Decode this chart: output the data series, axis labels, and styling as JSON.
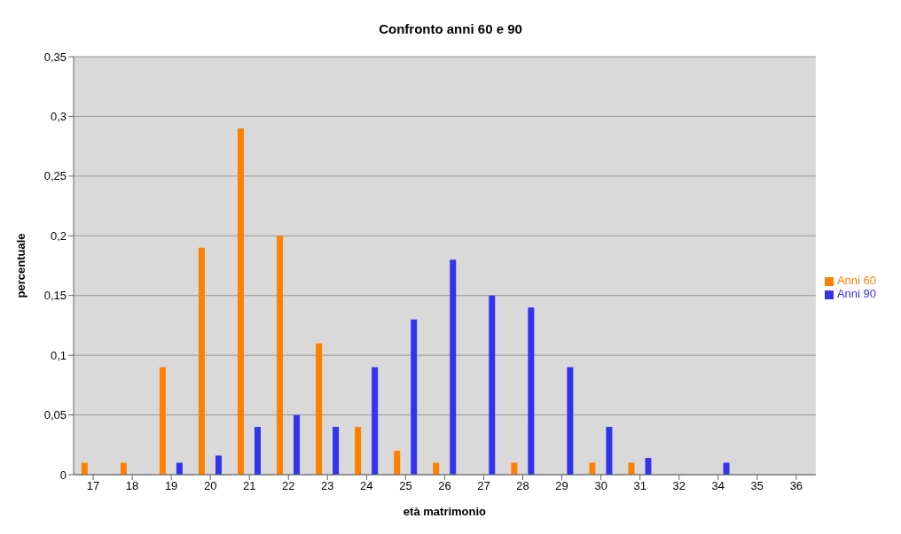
{
  "chart_data": {
    "type": "bar",
    "title": "Confronto anni 60 e 90",
    "xlabel": "età matrimonio",
    "ylabel": "percentuale",
    "categories": [
      "17",
      "18",
      "19",
      "20",
      "21",
      "22",
      "23",
      "24",
      "25",
      "26",
      "27",
      "28",
      "29",
      "30",
      "31",
      "32",
      "34",
      "35",
      "36"
    ],
    "series": [
      {
        "name": "Anni 60",
        "color": "#ff8000",
        "values": [
          0.01,
          0.01,
          0.09,
          0.19,
          0.29,
          0.2,
          0.11,
          0.04,
          0.02,
          0.01,
          0,
          0.01,
          0,
          0.01,
          0.01,
          0,
          0,
          0,
          0
        ]
      },
      {
        "name": "Anni 90",
        "color": "#3333ee",
        "values": [
          0,
          0,
          0.01,
          0.016,
          0.04,
          0.05,
          0.04,
          0.09,
          0.13,
          0.18,
          0.15,
          0.14,
          0.09,
          0.04,
          0.014,
          0,
          0.01,
          0,
          0
        ]
      }
    ],
    "ylim": [
      0,
      0.35
    ],
    "yticks": [
      {
        "value": 0,
        "label": "0"
      },
      {
        "value": 0.05,
        "label": "0,05"
      },
      {
        "value": 0.1,
        "label": "0,1"
      },
      {
        "value": 0.15,
        "label": "0,15"
      },
      {
        "value": 0.2,
        "label": "0,2"
      },
      {
        "value": 0.25,
        "label": "0,25"
      },
      {
        "value": 0.3,
        "label": "0,3"
      },
      {
        "value": 0.35,
        "label": "0,35"
      }
    ],
    "grid": "y",
    "legend": "right"
  }
}
